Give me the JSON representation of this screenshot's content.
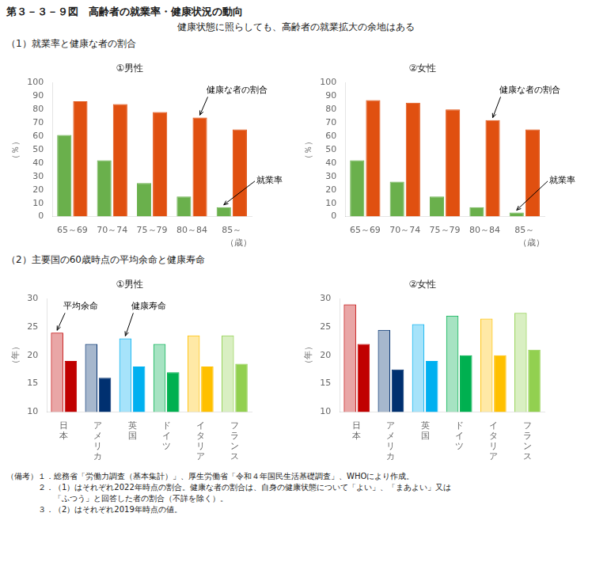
{
  "title": "第３－３－９図　高齢者の就業率・健康状況の動向",
  "subtitle": "健康状態に照らしても、高齢者の就業拡大の余地はある",
  "headings": [
    "（1）就業率と健康な者の割合",
    "（2）主要国の60歳時点の平均余命と健康寿命"
  ],
  "footnotes": [
    "（備考）１．総務省「労働力調査（基本集計）」、厚生労働省「令和４年国民生活基礎調査」、WHOにより作成。",
    "　　　　２．（1）はそれぞれ2022年時点の割合。健康な者の割合は、自身の健康状態について「よい」、「まあよい」又は",
    "　　　　　　「ふつう」と回答した者の割合（不詳を除く）。",
    "　　　　３．（2）はそれぞれ2019年時点の値。"
  ],
  "chart_data": [
    {
      "type": "bar",
      "title": "①男性",
      "categories": [
        "65～69",
        "70～74",
        "75～79",
        "80～84",
        "85～"
      ],
      "series": [
        {
          "color": "#6ab04c",
          "values": [
            61,
            42,
            25,
            15,
            7
          ]
        },
        {
          "color": "#e05010",
          "values": [
            86,
            84,
            78,
            74,
            65
          ]
        }
      ],
      "ylim": [
        0,
        100
      ],
      "yticks": [
        0,
        10,
        20,
        30,
        40,
        50,
        60,
        70,
        80,
        90,
        100
      ],
      "ylabel": "（％）",
      "xlabel": "（歳）",
      "grid": false,
      "annotations": [
        {
          "text": "健康な者の割合",
          "series": 1,
          "index": 3
        },
        {
          "text": "就業率",
          "series": 0,
          "index": 4
        }
      ]
    },
    {
      "type": "bar",
      "title": "②女性",
      "categories": [
        "65～69",
        "70～74",
        "75～79",
        "80～84",
        "85～"
      ],
      "series": [
        {
          "color": "#6ab04c",
          "values": [
            42,
            26,
            15,
            7,
            3
          ]
        },
        {
          "color": "#e05010",
          "values": [
            87,
            85,
            80,
            72,
            65
          ]
        }
      ],
      "ylim": [
        0,
        100
      ],
      "yticks": [
        0,
        10,
        20,
        30,
        40,
        50,
        60,
        70,
        80,
        90,
        100
      ],
      "ylabel": "（％）",
      "xlabel": "（歳）",
      "grid": false,
      "annotations": [
        {
          "text": "健康な者の割合",
          "series": 1,
          "index": 3
        },
        {
          "text": "就業率",
          "series": 0,
          "index": 4
        }
      ]
    },
    {
      "type": "bar",
      "title": "①男性",
      "categories": [
        "日\n本",
        "ア\nメ\nリ\nカ",
        "英\n国",
        "ド\nイ\nツ",
        "イ\nタ\nリ\nア",
        "フ\nラ\nン\nス"
      ],
      "series": [
        {
          "colors": [
            "#c00000",
            "#003070",
            "#00b0f0",
            "#00b050",
            "#ffc000",
            "#92d050"
          ],
          "values": [
            24,
            22,
            23,
            22,
            23.5,
            23.5
          ]
        },
        {
          "colors": [
            "#c00000",
            "#003070",
            "#00b0f0",
            "#00b050",
            "#ffc000",
            "#92d050"
          ],
          "values": [
            19,
            16,
            18,
            17,
            18,
            18.5
          ]
        }
      ],
      "ylim": [
        10,
        30
      ],
      "yticks": [
        10,
        15,
        20,
        25,
        30
      ],
      "ylabel": "（年）",
      "grid": false,
      "annotations": [
        {
          "text": "平均余命",
          "series": 0,
          "index": 0
        },
        {
          "text": "健康寿命",
          "series": 0,
          "index": 2
        }
      ]
    },
    {
      "type": "bar",
      "title": "②女性",
      "categories": [
        "日\n本",
        "ア\nメ\nリ\nカ",
        "英\n国",
        "ド\nイ\nツ",
        "イ\nタ\nリ\nア",
        "フ\nラ\nン\nス"
      ],
      "series": [
        {
          "colors": [
            "#c00000",
            "#003070",
            "#00b0f0",
            "#00b050",
            "#ffc000",
            "#92d050"
          ],
          "values": [
            29,
            24.5,
            25.5,
            27,
            26.5,
            27.5
          ]
        },
        {
          "colors": [
            "#c00000",
            "#003070",
            "#00b0f0",
            "#00b050",
            "#ffc000",
            "#92d050"
          ],
          "values": [
            22,
            17.5,
            19,
            20,
            20,
            21
          ]
        }
      ],
      "ylim": [
        10,
        30
      ],
      "yticks": [
        10,
        15,
        20,
        25,
        30
      ],
      "ylabel": "（年）",
      "grid": false
    }
  ]
}
